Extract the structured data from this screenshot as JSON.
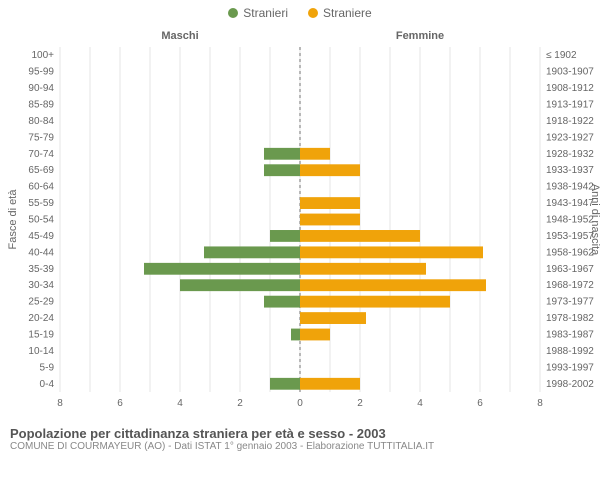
{
  "legend": {
    "male": {
      "label": "Stranieri",
      "color": "#6a994e"
    },
    "female": {
      "label": "Straniere",
      "color": "#f0a30a"
    }
  },
  "chart": {
    "type": "population-pyramid",
    "x_max": 8,
    "x_ticks": [
      8,
      6,
      4,
      2,
      0,
      2,
      4,
      6,
      8
    ],
    "left_title": "Maschi",
    "right_title": "Femmine",
    "left_axis_label": "Fasce di età",
    "right_axis_label": "Anni di nascita",
    "grid_color": "#e5e5e5",
    "center_line_color": "#888",
    "background_color": "#ffffff",
    "bar_colors": {
      "male": "#6a994e",
      "female": "#f0a30a"
    },
    "rows": [
      {
        "age": "100+",
        "birth": "≤ 1902",
        "m": 0,
        "f": 0
      },
      {
        "age": "95-99",
        "birth": "1903-1907",
        "m": 0,
        "f": 0
      },
      {
        "age": "90-94",
        "birth": "1908-1912",
        "m": 0,
        "f": 0
      },
      {
        "age": "85-89",
        "birth": "1913-1917",
        "m": 0,
        "f": 0
      },
      {
        "age": "80-84",
        "birth": "1918-1922",
        "m": 0,
        "f": 0
      },
      {
        "age": "75-79",
        "birth": "1923-1927",
        "m": 0,
        "f": 0
      },
      {
        "age": "70-74",
        "birth": "1928-1932",
        "m": 1.2,
        "f": 1
      },
      {
        "age": "65-69",
        "birth": "1933-1937",
        "m": 1.2,
        "f": 2
      },
      {
        "age": "60-64",
        "birth": "1938-1942",
        "m": 0,
        "f": 0
      },
      {
        "age": "55-59",
        "birth": "1943-1947",
        "m": 0,
        "f": 2
      },
      {
        "age": "50-54",
        "birth": "1948-1952",
        "m": 0,
        "f": 2
      },
      {
        "age": "45-49",
        "birth": "1953-1957",
        "m": 1,
        "f": 4
      },
      {
        "age": "40-44",
        "birth": "1958-1962",
        "m": 3.2,
        "f": 6.1
      },
      {
        "age": "35-39",
        "birth": "1963-1967",
        "m": 5.2,
        "f": 4.2
      },
      {
        "age": "30-34",
        "birth": "1968-1972",
        "m": 4,
        "f": 6.2
      },
      {
        "age": "25-29",
        "birth": "1973-1977",
        "m": 1.2,
        "f": 5
      },
      {
        "age": "20-24",
        "birth": "1978-1982",
        "m": 0,
        "f": 2.2
      },
      {
        "age": "15-19",
        "birth": "1983-1987",
        "m": 0.3,
        "f": 1
      },
      {
        "age": "10-14",
        "birth": "1988-1992",
        "m": 0,
        "f": 0
      },
      {
        "age": "5-9",
        "birth": "1993-1997",
        "m": 0,
        "f": 0
      },
      {
        "age": "0-4",
        "birth": "1998-2002",
        "m": 1,
        "f": 2
      }
    ]
  },
  "footer": {
    "title": "Popolazione per cittadinanza straniera per età e sesso - 2003",
    "subtitle": "COMUNE DI COURMAYEUR (AO) - Dati ISTAT 1° gennaio 2003 - Elaborazione TUTTITALIA.IT"
  }
}
